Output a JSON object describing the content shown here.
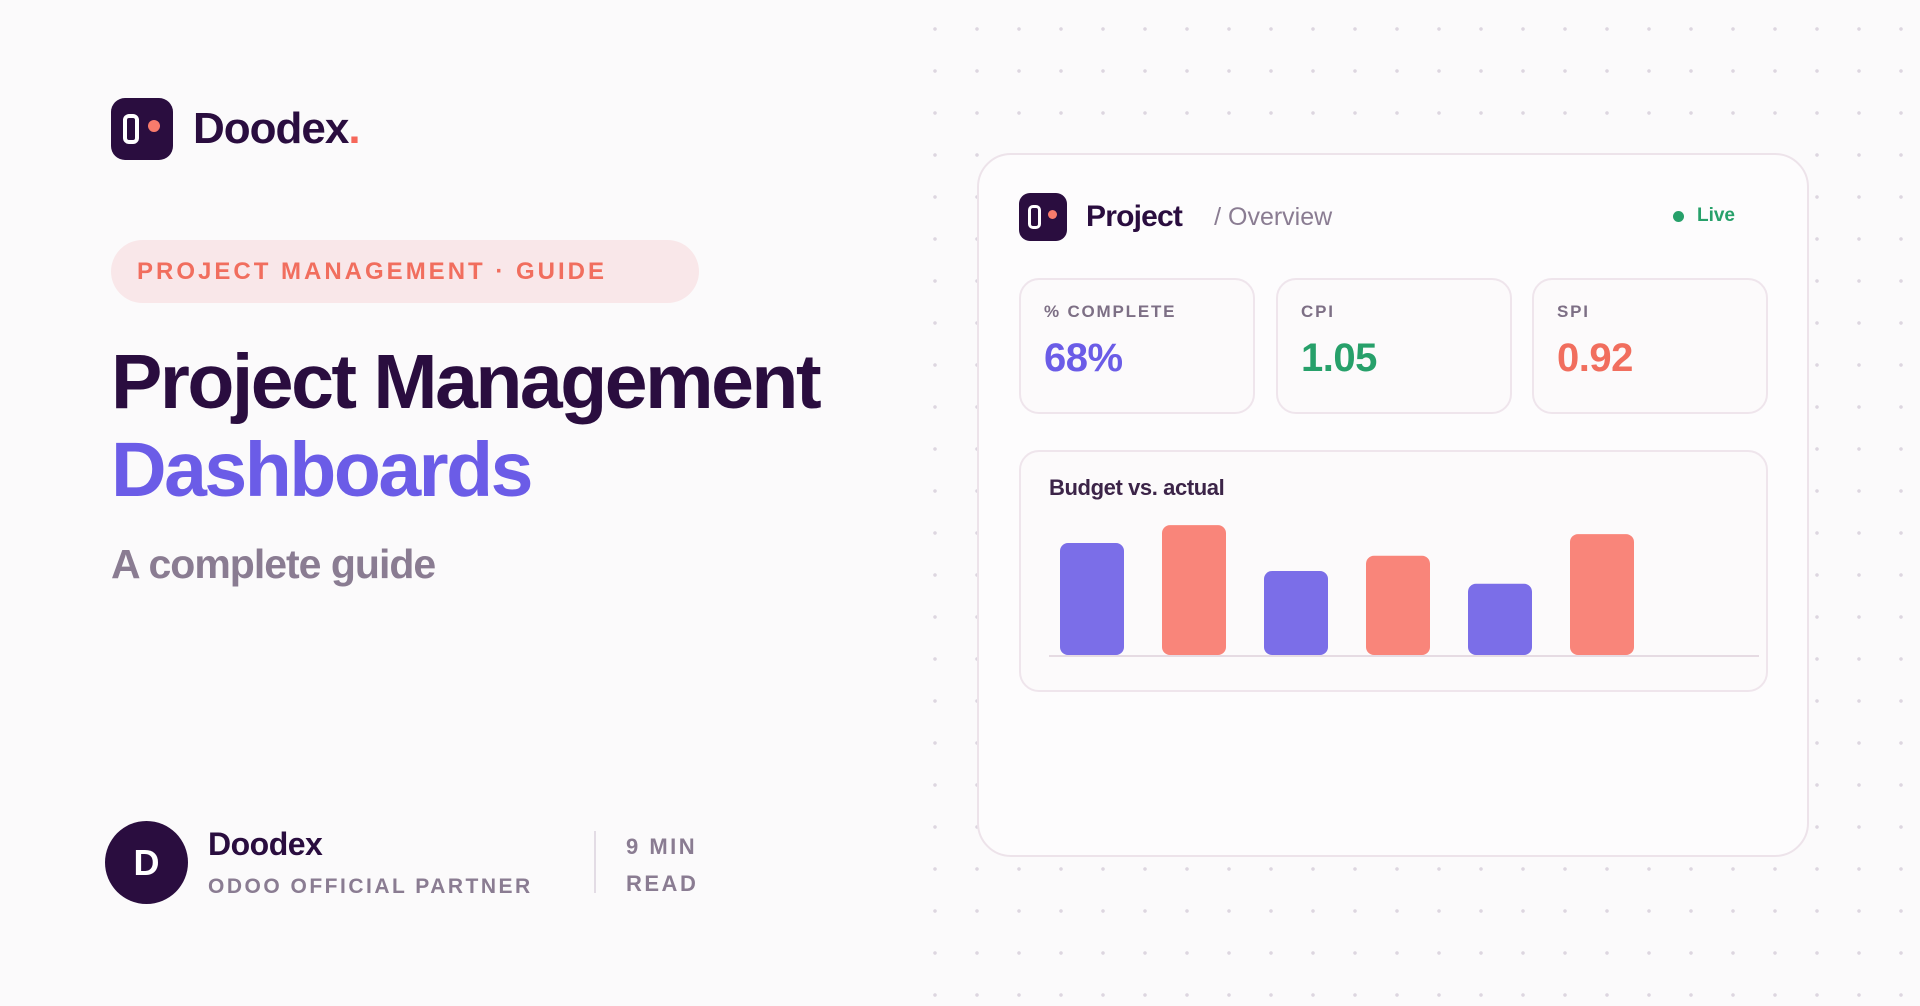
{
  "brand": {
    "name": "Doodex",
    "name_accent": "."
  },
  "tag": "PROJECT MANAGEMENT · GUIDE",
  "headline": {
    "line1": "Project Management",
    "line2": "Dashboards"
  },
  "subtitle": "A complete guide",
  "author": {
    "initial": "D",
    "name": "Doodex",
    "role": "ODOO OFFICIAL PARTNER"
  },
  "read_time": "9 MIN READ",
  "dashboard": {
    "title": "Project",
    "crumb": "/ Overview",
    "status": "Live",
    "kpis": [
      {
        "label": "% COMPLETE",
        "value": "68%",
        "color": "#6b5ce7"
      },
      {
        "label": "CPI",
        "value": "1.05",
        "color": "#27a06a"
      },
      {
        "label": "SPI",
        "value": "0.92",
        "color": "#f16e5e"
      }
    ],
    "chart_title": "Budget vs. actual"
  },
  "colors": {
    "budget": "#7b6ee8",
    "actual": "#f9857a",
    "ink": "#2a0d3f",
    "accent": "#6b5ce7"
  },
  "chart_data": {
    "type": "bar",
    "title": "Budget vs. actual",
    "values": [
      88,
      102,
      66,
      78,
      56,
      95
    ],
    "colors": [
      "#7b6ee8",
      "#f9857a",
      "#7b6ee8",
      "#f9857a",
      "#7b6ee8",
      "#f9857a"
    ],
    "ylim": [
      0,
      110
    ],
    "grid": false
  }
}
